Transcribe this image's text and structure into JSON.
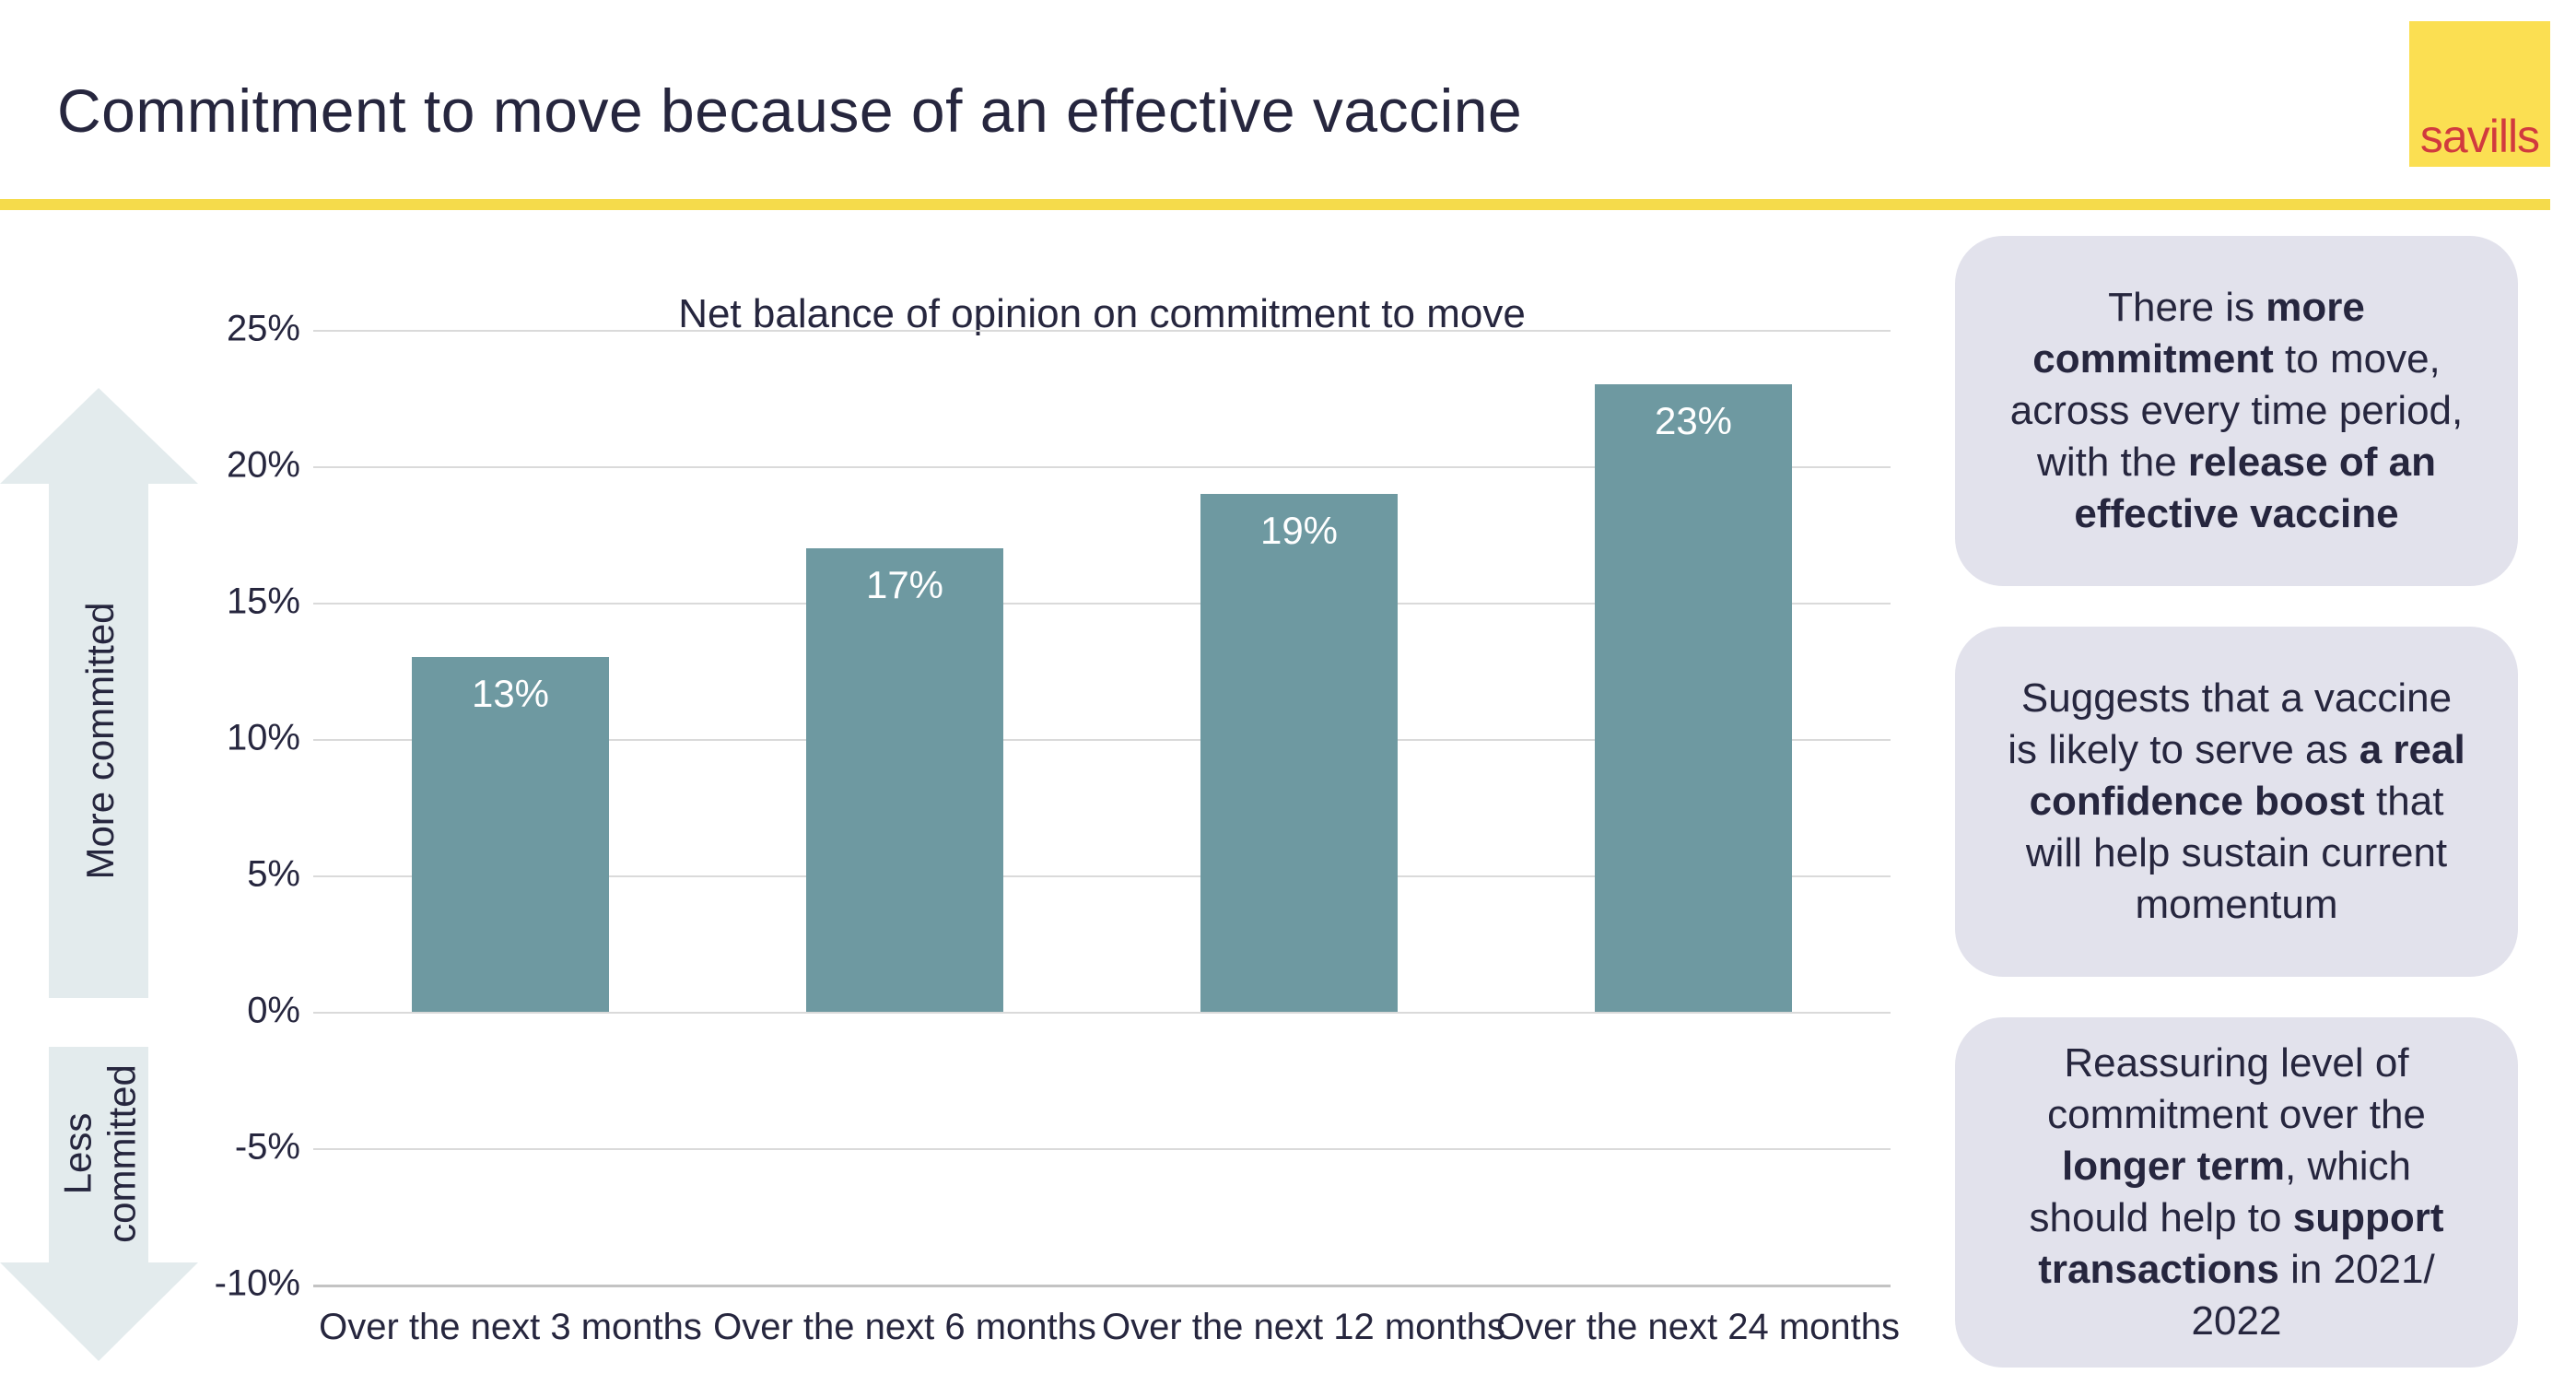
{
  "slide": {
    "title": "Commitment to move because of an effective vaccine",
    "brand": {
      "logo_text": "savills",
      "logo_square_color": "#FBDF52",
      "logo_text_color": "#D13A3E",
      "accent_line_color": "#F5DB4B"
    },
    "text_color": "#26263E"
  },
  "chart_data": {
    "type": "bar",
    "title": "Net balance of opinion on commitment to move",
    "categories": [
      "Over the next 3 months",
      "Over the next 6 months",
      "Over the next 12 months",
      "Over the next 24 months"
    ],
    "values": [
      13,
      17,
      19,
      23
    ],
    "bar_labels": [
      "13%",
      "17%",
      "19%",
      "23%"
    ],
    "xlabel": "",
    "ylabel": "",
    "ylim": [
      -10,
      25
    ],
    "ytick_step": 5,
    "ytick_suffix": "%",
    "grid": "horizontal-only",
    "legend": "none",
    "bar_color": "#6E99A1",
    "bar_label_color": "#FFFFFF",
    "gridline_color": "#DADADA"
  },
  "axis_annotations": {
    "up_label": "More committed",
    "down_label": "Less\ncommitted",
    "arrow_color": "#E3EBED"
  },
  "commentary": {
    "box_color": "#E2E2EC",
    "box_tops": [
      256,
      680,
      1104
    ],
    "boxes": [
      {
        "segments": [
          {
            "t": "There is ",
            "b": false
          },
          {
            "t": "more commitment",
            "b": true
          },
          {
            "t": " to move, across every time period, with the ",
            "b": false
          },
          {
            "t": "release of an effective vaccine",
            "b": true
          }
        ]
      },
      {
        "segments": [
          {
            "t": "Suggests that a vaccine is likely to serve as ",
            "b": false
          },
          {
            "t": "a real confidence boost",
            "b": true
          },
          {
            "t": " that will help sustain current momentum",
            "b": false
          }
        ]
      },
      {
        "segments": [
          {
            "t": "Reassuring level of commitment over the ",
            "b": false
          },
          {
            "t": "longer term",
            "b": true
          },
          {
            "t": ", which should help to ",
            "b": false
          },
          {
            "t": "support transactions",
            "b": true
          },
          {
            "t": " in 2021/ 2022",
            "b": false
          }
        ]
      }
    ]
  }
}
